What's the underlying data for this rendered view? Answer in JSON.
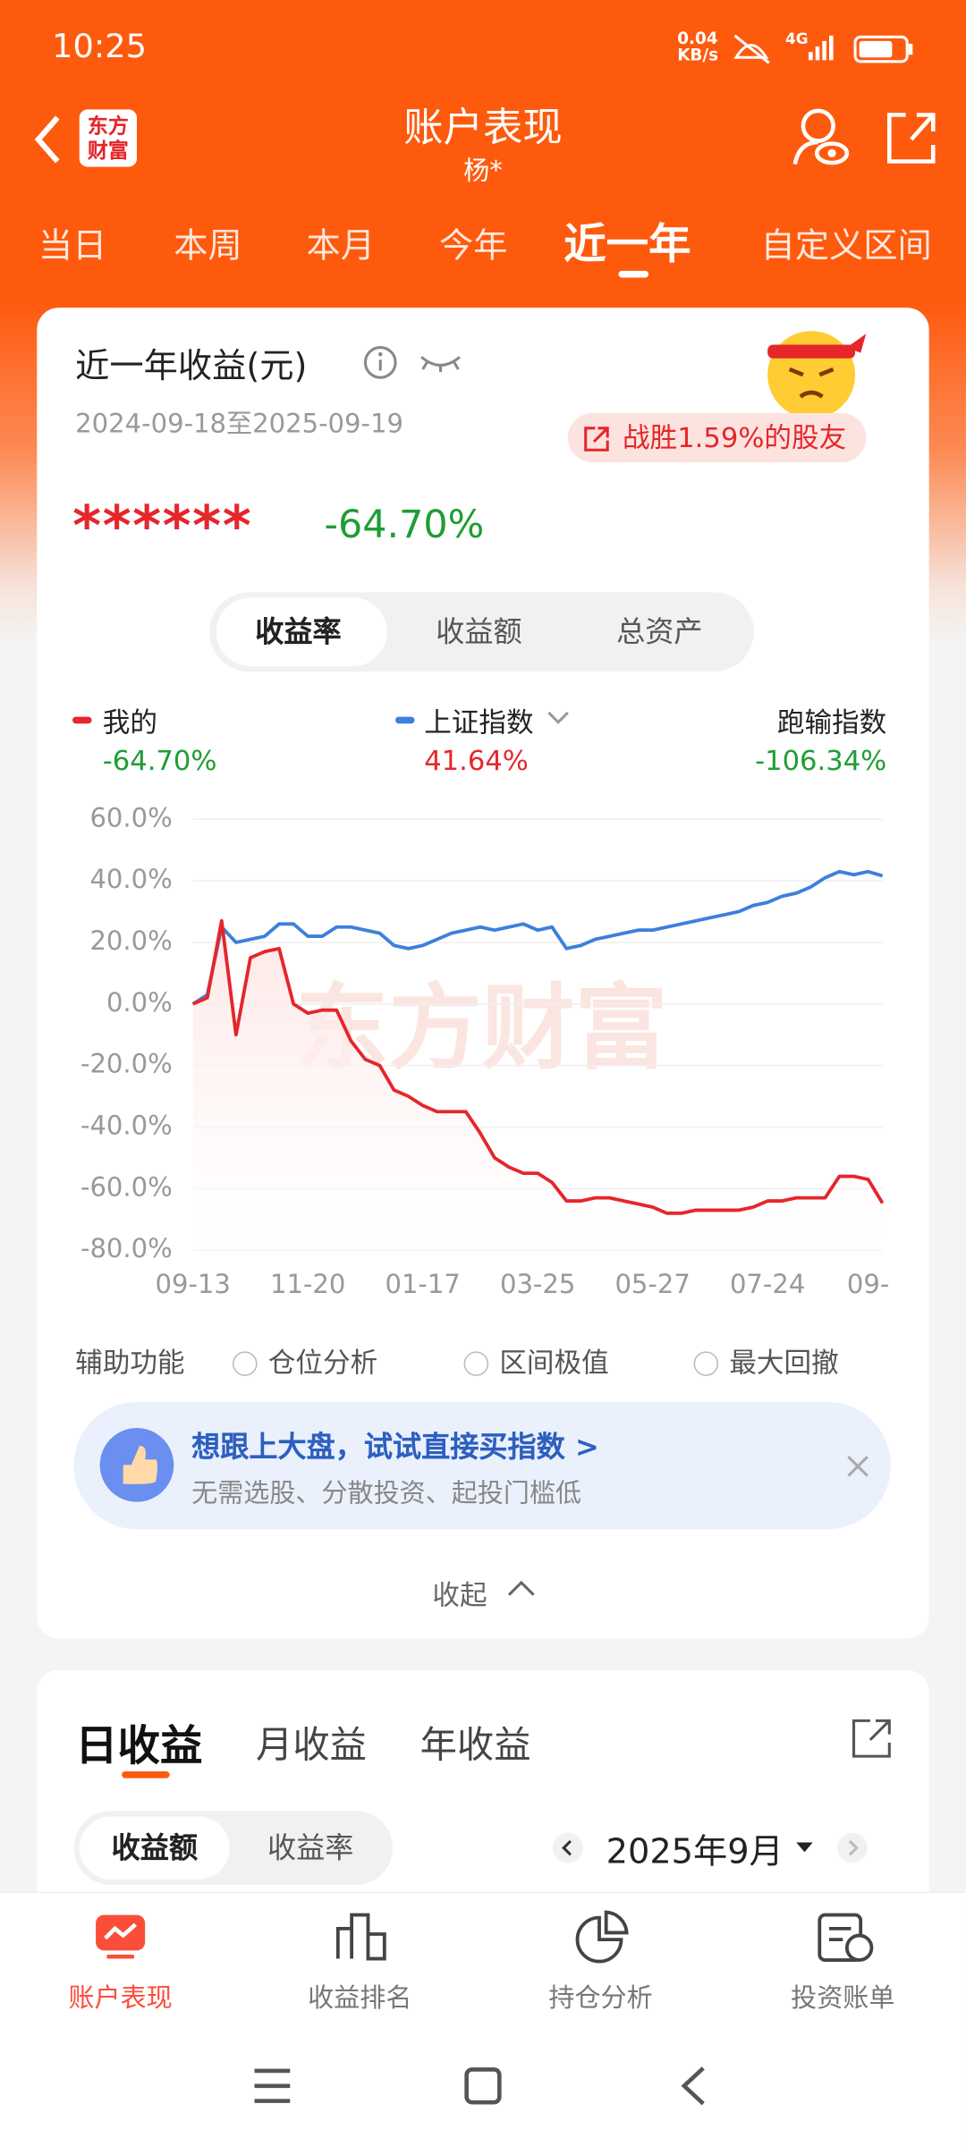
{
  "status_bar": {
    "time": "10:25",
    "speed": "0.04",
    "speed_unit": "KB/s",
    "network": "4G"
  },
  "header": {
    "logo": [
      "东方",
      "财富"
    ],
    "title": "账户表现",
    "subtitle": "杨*"
  },
  "tabs": [
    "当日",
    "本周",
    "本月",
    "今年",
    "近一年",
    "自定义区间"
  ],
  "card": {
    "title": "近一年收益(元)",
    "date_range": "2024-09-18至2025-09-19",
    "badge": "战胜1.59%的股友",
    "masked_amount": "******",
    "return": "-64.70%",
    "segments": [
      "收益率",
      "收益额",
      "总资产"
    ]
  },
  "chart_data": {
    "type": "line",
    "watermark": "东方财富",
    "categories": [
      "09-13",
      null,
      null,
      null,
      null,
      null,
      null,
      null,
      "11-20",
      null,
      null,
      null,
      null,
      null,
      null,
      null,
      "01-17",
      null,
      null,
      null,
      null,
      null,
      null,
      null,
      "03-25",
      null,
      null,
      null,
      null,
      null,
      null,
      null,
      "05-27",
      null,
      null,
      null,
      null,
      null,
      null,
      null,
      "07-24",
      null,
      null,
      null,
      null,
      null,
      null,
      "09-",
      null
    ],
    "series": [
      {
        "name": "我的",
        "color": "#e5262b",
        "value_label": "-64.70%",
        "label_color": "#1f9d33",
        "values": [
          0,
          2,
          27,
          -10,
          15,
          17,
          18,
          0,
          -3,
          -2,
          -2,
          -12,
          -18,
          -20,
          -28,
          -30,
          -33,
          -35,
          -35,
          -35,
          -42,
          -50,
          -53,
          -55,
          -55,
          -58,
          -64,
          -64,
          -63,
          -63,
          -64,
          -65,
          -66,
          -68,
          -68,
          -67,
          -67,
          -67,
          -67,
          -66,
          -64,
          -64,
          -63,
          -63,
          -63,
          -56,
          -56,
          -57,
          -64.7
        ]
      },
      {
        "name": "上证指数",
        "color": "#3d7fdc",
        "value_label": "41.64%",
        "label_color": "#e5262b",
        "values": [
          0,
          3,
          25,
          20,
          21,
          22,
          26,
          26,
          22,
          22,
          25,
          25,
          24,
          23,
          19,
          18,
          19,
          21,
          23,
          24,
          25,
          24,
          25,
          26,
          24,
          25,
          18,
          19,
          21,
          22,
          23,
          24,
          24,
          25,
          26,
          27,
          28,
          29,
          30,
          32,
          33,
          35,
          36,
          38,
          41,
          43,
          42,
          43,
          41.64
        ]
      }
    ],
    "extra_stat": {
      "name": "跑输指数",
      "label": "-106.34%"
    },
    "ylim": [
      -80,
      60
    ],
    "yticks": [
      {
        "value": -80,
        "label": "-80.0%"
      },
      {
        "value": -60,
        "label": "-60.0%"
      },
      {
        "value": -40,
        "label": "-40.0%"
      },
      {
        "value": -20,
        "label": "-20.0%"
      },
      {
        "value": 0,
        "label": "0.0%"
      },
      {
        "value": 20,
        "label": "20.0%"
      },
      {
        "value": 40,
        "label": "40.0%"
      },
      {
        "value": 60,
        "label": "60.0%"
      }
    ],
    "grid": true
  },
  "aux": {
    "label": "辅助功能",
    "options": [
      "仓位分析",
      "区间极值",
      "最大回撤"
    ]
  },
  "promo": {
    "title": "想跟上大盘，试试直接买指数 >",
    "subtitle": "无需选股、分散投资、起投门槛低"
  },
  "collapse": "收起",
  "section2": {
    "tabs": [
      "日收益",
      "月收益",
      "年收益"
    ],
    "toggle": [
      "收益额",
      "收益率"
    ],
    "month": "2025年9月"
  },
  "bottom_nav": [
    "账户表现",
    "收益排名",
    "持仓分析",
    "投资账单"
  ]
}
